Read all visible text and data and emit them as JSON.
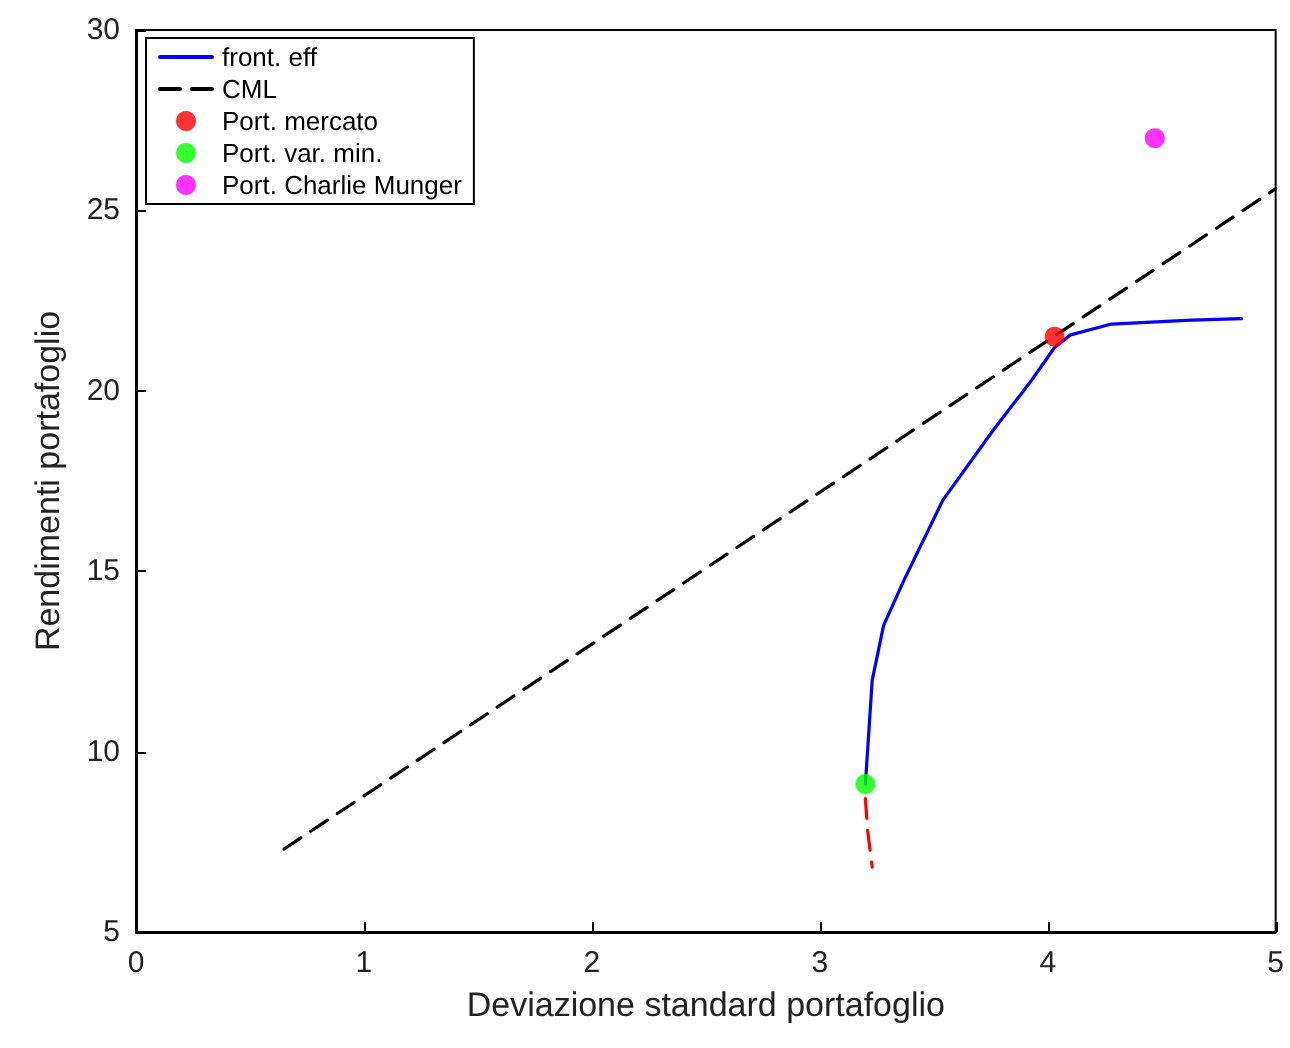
{
  "chart_data": {
    "type": "line",
    "xlabel": "Deviazione standard portafoglio",
    "ylabel": "Rendimenti portafoglio",
    "xlim": [
      0,
      5
    ],
    "xticks": [
      0,
      1,
      2,
      3,
      4,
      5
    ],
    "ylim": [
      5,
      30
    ],
    "yticks": [
      5,
      10,
      15,
      20,
      25,
      30
    ],
    "grid": false,
    "legend": "top left",
    "marker": "none",
    "series": [
      {
        "name": "front. eff",
        "color": "#0000ff",
        "line_style": "solid",
        "x": [
          3.2,
          3.23,
          3.28,
          3.37,
          3.54,
          3.76,
          3.93,
          4.03,
          4.1,
          4.28,
          4.63,
          4.85
        ],
        "values": [
          9.1,
          11.98,
          13.5,
          14.76,
          16.97,
          18.9,
          20.3,
          21.2,
          21.55,
          21.85,
          21.96,
          22.0
        ]
      },
      {
        "name": "CML",
        "color": "#000000",
        "line_style": "dashed",
        "x": [
          0.65,
          5
        ],
        "values": [
          7.3,
          25.6
        ]
      },
      {
        "name": "Port. mercato",
        "type": "scatter",
        "marker": "circle",
        "color": "#ff0000",
        "x": [
          4.03
        ],
        "values": [
          21.5
        ]
      },
      {
        "name": "Port. var. min.",
        "type": "scatter",
        "marker": "circle",
        "color": "#00ff00",
        "x": [
          3.2
        ],
        "values": [
          9.1
        ]
      },
      {
        "name": "Port. Charlie Munger",
        "type": "scatter",
        "marker": "circle",
        "color": "#ff00ff",
        "x": [
          4.47
        ],
        "values": [
          27.0
        ]
      },
      {
        "color": "#ff0000",
        "line_style": "dashed",
        "x": [
          3.2,
          3.21,
          3.23
        ],
        "values": [
          8.7,
          7.8,
          6.8
        ]
      }
    ]
  }
}
